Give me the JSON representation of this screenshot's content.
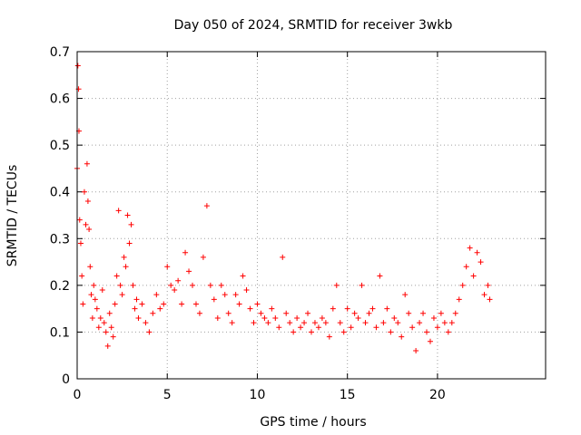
{
  "chart_data": {
    "type": "scatter",
    "title": "Day 050 of 2024, SRMTID for receiver 3wkb",
    "xlabel": "GPS time / hours",
    "ylabel": "SRMTID / TECUs",
    "xlim": [
      0,
      26
    ],
    "ylim": [
      0,
      0.7
    ],
    "x_ticks": [
      0,
      5,
      10,
      15,
      20
    ],
    "x_tick_labels": [
      "0",
      "5",
      "10",
      "15",
      "20"
    ],
    "y_ticks": [
      0,
      0.1,
      0.2,
      0.3,
      0.4,
      0.5,
      0.6,
      0.7
    ],
    "y_tick_labels": [
      "0",
      "0.1",
      "0.2",
      "0.3",
      "0.4",
      "0.5",
      "0.6",
      "0.7"
    ],
    "grid": true,
    "marker": "plus",
    "color": "#ff0000",
    "series": [
      {
        "name": "3wkb",
        "x": [
          0.0,
          0.04,
          0.08,
          0.1,
          0.14,
          0.2,
          0.26,
          0.32,
          0.4,
          0.48,
          0.55,
          0.6,
          0.66,
          0.72,
          0.78,
          0.85,
          0.92,
          1.0,
          1.1,
          1.2,
          1.3,
          1.4,
          1.5,
          1.6,
          1.7,
          1.8,
          1.9,
          2.0,
          2.1,
          2.2,
          2.3,
          2.4,
          2.5,
          2.6,
          2.7,
          2.8,
          2.9,
          3.0,
          3.1,
          3.2,
          3.3,
          3.4,
          3.6,
          3.8,
          4.0,
          4.2,
          4.4,
          4.6,
          4.8,
          5.0,
          5.2,
          5.4,
          5.6,
          5.8,
          6.0,
          6.2,
          6.4,
          6.6,
          6.8,
          7.0,
          7.2,
          7.4,
          7.6,
          7.8,
          8.0,
          8.2,
          8.4,
          8.6,
          8.8,
          9.0,
          9.2,
          9.4,
          9.6,
          9.8,
          10.0,
          10.2,
          10.4,
          10.6,
          10.8,
          11.0,
          11.2,
          11.4,
          11.6,
          11.8,
          12.0,
          12.2,
          12.4,
          12.6,
          12.8,
          13.0,
          13.2,
          13.4,
          13.6,
          13.8,
          14.0,
          14.2,
          14.4,
          14.6,
          14.8,
          15.0,
          15.2,
          15.4,
          15.6,
          15.8,
          16.0,
          16.2,
          16.4,
          16.6,
          16.8,
          17.0,
          17.2,
          17.4,
          17.6,
          17.8,
          18.0,
          18.2,
          18.4,
          18.6,
          18.8,
          19.0,
          19.2,
          19.4,
          19.6,
          19.8,
          20.0,
          20.2,
          20.4,
          20.6,
          20.8,
          21.0,
          21.2,
          21.4,
          21.6,
          21.8,
          22.0,
          22.2,
          22.4,
          22.6,
          22.8,
          22.9
        ],
        "y": [
          0.45,
          0.67,
          0.62,
          0.53,
          0.34,
          0.29,
          0.22,
          0.16,
          0.4,
          0.33,
          0.46,
          0.38,
          0.32,
          0.24,
          0.18,
          0.13,
          0.2,
          0.17,
          0.15,
          0.11,
          0.13,
          0.19,
          0.12,
          0.1,
          0.07,
          0.14,
          0.11,
          0.09,
          0.16,
          0.22,
          0.36,
          0.2,
          0.18,
          0.26,
          0.24,
          0.35,
          0.29,
          0.33,
          0.2,
          0.15,
          0.17,
          0.13,
          0.16,
          0.12,
          0.1,
          0.14,
          0.18,
          0.15,
          0.16,
          0.24,
          0.2,
          0.19,
          0.21,
          0.16,
          0.27,
          0.23,
          0.2,
          0.16,
          0.14,
          0.26,
          0.37,
          0.2,
          0.17,
          0.13,
          0.2,
          0.18,
          0.14,
          0.12,
          0.18,
          0.16,
          0.22,
          0.19,
          0.15,
          0.12,
          0.16,
          0.14,
          0.13,
          0.12,
          0.15,
          0.13,
          0.11,
          0.26,
          0.14,
          0.12,
          0.1,
          0.13,
          0.11,
          0.12,
          0.14,
          0.1,
          0.12,
          0.11,
          0.13,
          0.12,
          0.09,
          0.15,
          0.2,
          0.12,
          0.1,
          0.15,
          0.11,
          0.14,
          0.13,
          0.2,
          0.12,
          0.14,
          0.15,
          0.11,
          0.22,
          0.12,
          0.15,
          0.1,
          0.13,
          0.12,
          0.09,
          0.18,
          0.14,
          0.11,
          0.06,
          0.12,
          0.14,
          0.1,
          0.08,
          0.13,
          0.11,
          0.14,
          0.12,
          0.1,
          0.12,
          0.14,
          0.17,
          0.2,
          0.24,
          0.28,
          0.22,
          0.27,
          0.25,
          0.18,
          0.2,
          0.17
        ]
      }
    ]
  }
}
